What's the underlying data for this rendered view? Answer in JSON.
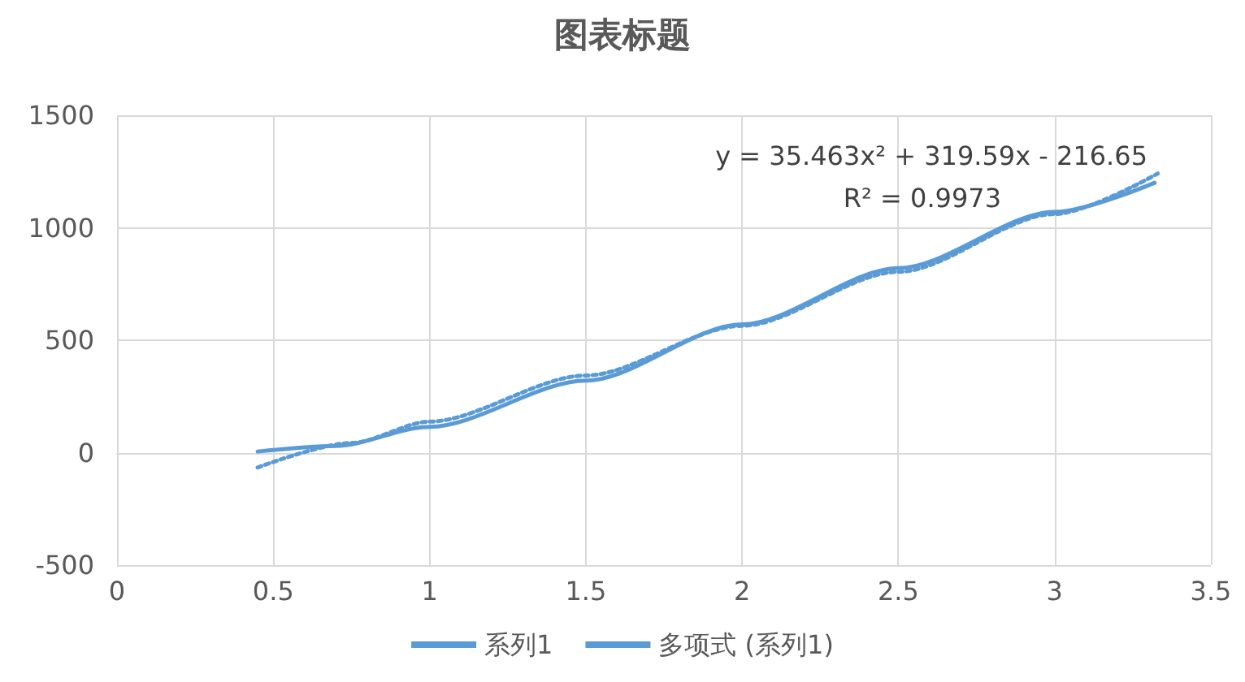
{
  "chart_data": {
    "type": "line",
    "title": "图表标题",
    "series": [
      {
        "name": "系列1",
        "color": "#5b9bd5",
        "line_style": "solid",
        "x": [
          0.45,
          0.7,
          1.0,
          1.5,
          2.0,
          2.5,
          3.0,
          3.32
        ],
        "values": [
          5,
          30,
          115,
          320,
          570,
          820,
          1070,
          1200
        ]
      },
      {
        "name": "多项式 (系列1)",
        "color": "#5b9bd5",
        "line_style": "dotted",
        "x": [
          0.45,
          0.75,
          1.0,
          1.5,
          2.0,
          2.5,
          3.0,
          3.33
        ],
        "values": [
          -66,
          43,
          138,
          343,
          564,
          804,
          1061,
          1241
        ]
      }
    ],
    "annotations": [
      "y = 35.463x² + 319.59x - 216.65",
      "R² = 0.9973"
    ],
    "xlim": [
      0,
      3.5
    ],
    "xticks": [
      0,
      0.5,
      1,
      1.5,
      2,
      2.5,
      3,
      3.5
    ],
    "ylim": [
      -500,
      1500
    ],
    "yticks": [
      -500,
      0,
      500,
      1000,
      1500
    ],
    "grid": true,
    "legend": "bottom",
    "marker": "none"
  }
}
